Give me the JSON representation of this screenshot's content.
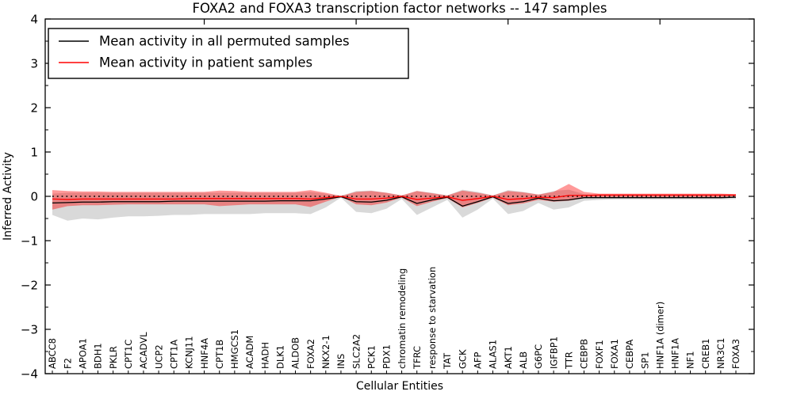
{
  "figure": {
    "title": "FOXA2 and FOXA3 transcription factor networks -- 147 samples",
    "xlabel": "Cellular Entities",
    "ylabel": "Inferred Activity"
  },
  "legend": {
    "position": "upper left",
    "entries": [
      {
        "label": "Mean activity in all permuted samples",
        "color": "#000000"
      },
      {
        "label": "Mean activity in patient samples",
        "color": "#ff0000"
      }
    ]
  },
  "chart_data": {
    "type": "line",
    "title": "FOXA2 and FOXA3 transcription factor networks -- 147 samples",
    "xlabel": "Cellular Entities",
    "ylabel": "Inferred Activity",
    "ylim": [
      -4,
      4
    ],
    "yticks": [
      4,
      3,
      2,
      1,
      0,
      -1,
      -2,
      -3,
      -4
    ],
    "y_minor_step": 0.5,
    "grid": false,
    "legend_position": "upper left",
    "x_top_tick_indices": [
      10,
      20,
      30,
      40
    ],
    "categories": [
      "ABCC8",
      "F2",
      "APOA1",
      "BDH1",
      "PKLR",
      "CPT1C",
      "ACADVL",
      "UCP2",
      "CPT1A",
      "KCNJ11",
      "HNF4A",
      "CPT1B",
      "HMGCS1",
      "ACADM",
      "HADH",
      "DLK1",
      "ALDOB",
      "FOXA2",
      "NKX2-1",
      "INS",
      "SLC2A2",
      "PCK1",
      "PDX1",
      "chromatin remodeling",
      "TFRC",
      "response to starvation",
      "TAT",
      "GCK",
      "AFP",
      "ALAS1",
      "AKT1",
      "ALB",
      "G6PC",
      "IGFBP1",
      "TTR",
      "CEBPB",
      "FOXF1",
      "FOXA1",
      "CEBPA",
      "SP1",
      "HNF1A (dimer)",
      "HNF1A",
      "NF1",
      "CREB1",
      "NR3C1",
      "FOXA3"
    ],
    "series": [
      {
        "name": "Mean activity in all permuted samples",
        "color": "#000000",
        "values": [
          -0.15,
          -0.14,
          -0.13,
          -0.13,
          -0.12,
          -0.12,
          -0.12,
          -0.12,
          -0.11,
          -0.11,
          -0.11,
          -0.11,
          -0.11,
          -0.11,
          -0.11,
          -0.1,
          -0.1,
          -0.1,
          -0.06,
          -0.01,
          -0.12,
          -0.13,
          -0.09,
          -0.01,
          -0.16,
          -0.08,
          -0.02,
          -0.22,
          -0.12,
          -0.01,
          -0.16,
          -0.12,
          -0.04,
          -0.1,
          -0.08,
          -0.03,
          -0.03,
          -0.03,
          -0.03,
          -0.03,
          -0.03,
          -0.03,
          -0.03,
          -0.03,
          -0.03,
          -0.02
        ]
      },
      {
        "name": "Mean activity in patient samples",
        "color": "#ff0000",
        "values": [
          -0.06,
          -0.07,
          -0.06,
          -0.06,
          -0.06,
          -0.06,
          -0.06,
          -0.06,
          -0.06,
          -0.05,
          -0.05,
          -0.05,
          -0.05,
          -0.05,
          -0.05,
          -0.05,
          -0.05,
          -0.06,
          -0.03,
          0.0,
          -0.06,
          -0.06,
          -0.04,
          0.0,
          -0.07,
          -0.04,
          -0.01,
          -0.09,
          -0.05,
          0.0,
          -0.07,
          -0.05,
          -0.02,
          -0.03,
          0.02,
          0.02,
          0.03,
          0.03,
          0.03,
          0.03,
          0.03,
          0.03,
          0.03,
          0.03,
          0.03,
          0.03
        ]
      }
    ],
    "bands": [
      {
        "name": "permuted samples range",
        "color": "rgba(128,128,128,0.30)",
        "lower": [
          -0.42,
          -0.55,
          -0.5,
          -0.52,
          -0.48,
          -0.45,
          -0.45,
          -0.44,
          -0.42,
          -0.42,
          -0.4,
          -0.4,
          -0.4,
          -0.4,
          -0.38,
          -0.38,
          -0.38,
          -0.4,
          -0.25,
          -0.03,
          -0.35,
          -0.38,
          -0.28,
          -0.06,
          -0.42,
          -0.25,
          -0.08,
          -0.48,
          -0.3,
          -0.05,
          -0.4,
          -0.33,
          -0.15,
          -0.3,
          -0.25,
          -0.1,
          -0.08,
          -0.07,
          -0.07,
          -0.07,
          -0.07,
          -0.07,
          -0.07,
          -0.07,
          -0.07,
          -0.06
        ],
        "upper": [
          0.06,
          0.08,
          0.08,
          0.08,
          0.08,
          0.08,
          0.08,
          0.08,
          0.08,
          0.08,
          0.08,
          0.08,
          0.08,
          0.08,
          0.08,
          0.08,
          0.08,
          0.1,
          0.06,
          0.01,
          0.12,
          0.13,
          0.08,
          0.02,
          0.12,
          0.08,
          0.02,
          0.15,
          0.1,
          0.02,
          0.14,
          0.1,
          0.04,
          0.12,
          0.15,
          0.05,
          0.03,
          0.03,
          0.03,
          0.03,
          0.03,
          0.03,
          0.03,
          0.03,
          0.03,
          0.03
        ]
      },
      {
        "name": "patient samples range",
        "color": "rgba(255,0,0,0.40)",
        "lower": [
          -0.3,
          -0.22,
          -0.2,
          -0.2,
          -0.19,
          -0.18,
          -0.18,
          -0.18,
          -0.18,
          -0.18,
          -0.18,
          -0.22,
          -0.2,
          -0.18,
          -0.18,
          -0.18,
          -0.18,
          -0.24,
          -0.12,
          -0.01,
          -0.18,
          -0.2,
          -0.14,
          -0.03,
          -0.22,
          -0.12,
          -0.04,
          -0.25,
          -0.15,
          -0.03,
          -0.2,
          -0.16,
          -0.08,
          -0.12,
          -0.1,
          -0.04,
          -0.02,
          -0.02,
          -0.02,
          -0.02,
          -0.02,
          -0.02,
          -0.02,
          -0.02,
          -0.02,
          -0.01
        ],
        "upper": [
          0.14,
          0.12,
          0.11,
          0.11,
          0.1,
          0.1,
          0.1,
          0.1,
          0.1,
          0.1,
          0.1,
          0.13,
          0.12,
          0.1,
          0.1,
          0.1,
          0.1,
          0.14,
          0.08,
          0.01,
          0.1,
          0.12,
          0.08,
          0.02,
          0.12,
          0.07,
          0.02,
          0.13,
          0.08,
          0.02,
          0.12,
          0.09,
          0.04,
          0.1,
          0.28,
          0.1,
          0.06,
          0.06,
          0.06,
          0.06,
          0.06,
          0.06,
          0.06,
          0.06,
          0.06,
          0.05
        ]
      }
    ],
    "baseline": {
      "value": 0,
      "style": "dotted",
      "color": "#000000"
    }
  }
}
